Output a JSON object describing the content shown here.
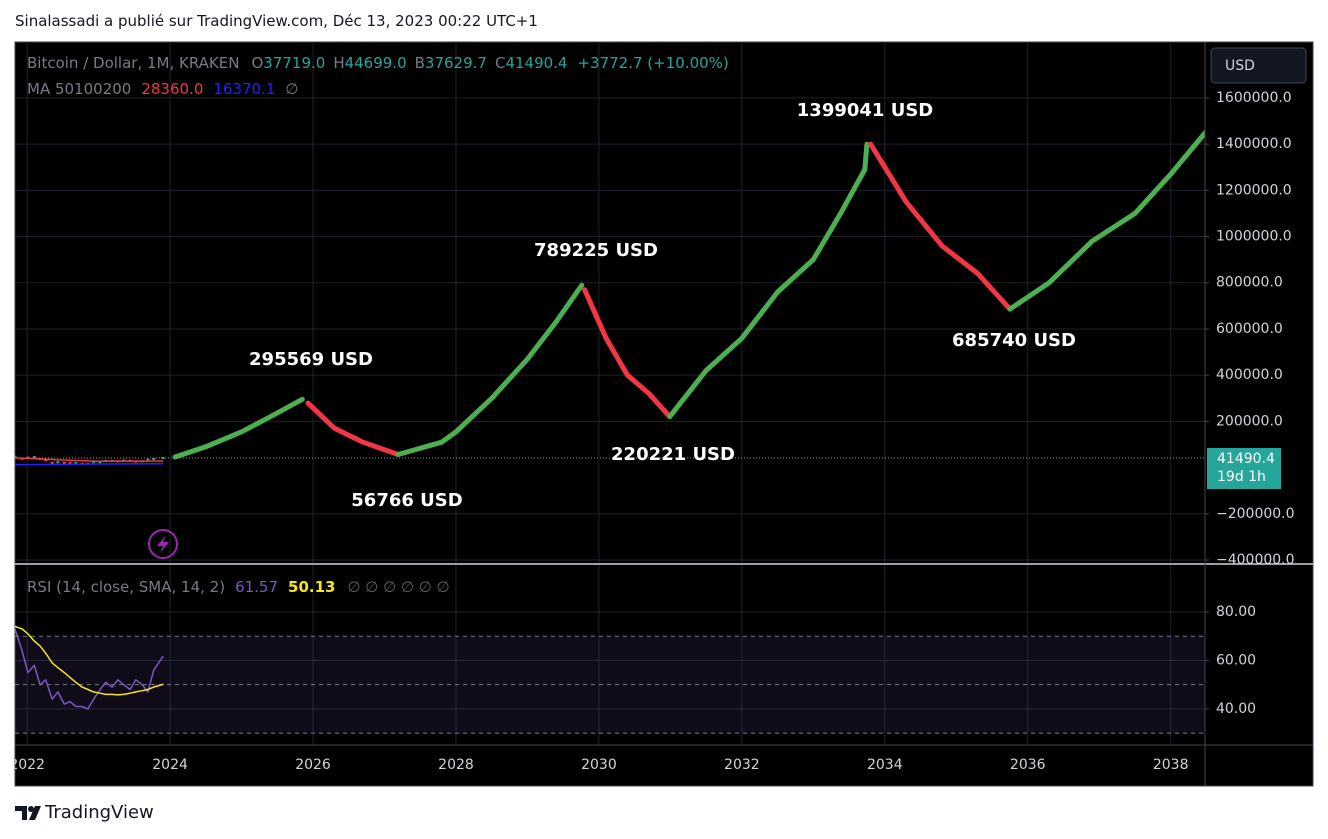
{
  "header": "Sinalassadi a publié sur TradingView.com, Déc 13, 2023 00:22 UTC+1",
  "footer": "TradingView",
  "chart_data": [
    {
      "type": "line",
      "title": "Bitcoin / Dollar, 1M, KRAKEN",
      "ohlc": [
        {
          "label": "O",
          "value": "37719.0"
        },
        {
          "label": "H",
          "value": "44699.0"
        },
        {
          "label": "B",
          "value": "37629.7"
        },
        {
          "label": "C",
          "value": "41490.4"
        }
      ],
      "change": "+3772.7 (+10.00%)",
      "indicator": {
        "name": "MA 50100200",
        "values": [
          {
            "text": "28360.0",
            "color": "#f23645"
          },
          {
            "text": "16370.1",
            "color": "#2121ff"
          }
        ],
        "empty": "∅"
      },
      "currency": "USD",
      "last_price": 41490.4,
      "countdown": "19d 1h",
      "xlim": [
        2021.83,
        2038.48
      ],
      "ylim": [
        -413000,
        1842000
      ],
      "yticks": [
        {
          "value": 1600000,
          "label": "1600000.0"
        },
        {
          "value": 1400000,
          "label": "1400000.0"
        },
        {
          "value": 1200000,
          "label": "1200000.0"
        },
        {
          "value": 1000000,
          "label": "1000000.0"
        },
        {
          "value": 800000,
          "label": "800000.0"
        },
        {
          "value": 600000,
          "label": "600000.0"
        },
        {
          "value": 400000,
          "label": "400000.0"
        },
        {
          "value": 200000,
          "label": "200000.0"
        },
        {
          "value": -200000,
          "label": "−200000.0"
        },
        {
          "value": -400000,
          "label": "−400000.0"
        }
      ],
      "grid": true,
      "candles": {
        "up_color": "#26a69a",
        "down_color": "#ef5350",
        "x": [
          2021.83,
          2021.93,
          2022.01,
          2022.1,
          2022.18,
          2022.26,
          2022.35,
          2022.43,
          2022.52,
          2022.6,
          2022.68,
          2022.77,
          2022.85,
          2022.93,
          2023.02,
          2023.1,
          2023.19,
          2023.27,
          2023.35,
          2023.44,
          2023.52,
          2023.61,
          2023.69,
          2023.77,
          2023.9
        ],
        "values": [
          47000,
          38500,
          43000,
          45500,
          37700,
          31800,
          19800,
          23300,
          20000,
          19400,
          20500,
          17200,
          16500,
          23100,
          23100,
          28500,
          29200,
          27200,
          30500,
          29200,
          26000,
          27000,
          34600,
          37700,
          41490.4
        ]
      },
      "series": [
        {
          "color": "#f23645",
          "width": 1.5,
          "x": [
            2021.83,
            2022.5,
            2023.0,
            2023.9
          ],
          "values": [
            42000,
            33000,
            27000,
            28360
          ]
        },
        {
          "color": "#2121ff",
          "width": 1.5,
          "x": [
            2021.83,
            2022.5,
            2023.0,
            2023.9
          ],
          "values": [
            12000,
            14000,
            15500,
            16370
          ]
        },
        {
          "color": "#4caf50",
          "width": 5,
          "x": [
            2024.07,
            2024.5,
            2025.0,
            2025.4,
            2025.85
          ],
          "values": [
            45900,
            90000,
            155000,
            220000,
            295569
          ]
        },
        {
          "color": "#f23645",
          "width": 5,
          "x": [
            2025.93,
            2026.3,
            2026.7,
            2027.19
          ],
          "values": [
            279000,
            170000,
            110000,
            56766
          ]
        },
        {
          "color": "#4caf50",
          "width": 5,
          "x": [
            2027.19,
            2027.8,
            2028.0,
            2028.5,
            2029.0,
            2029.4,
            2029.76
          ],
          "values": [
            56766,
            110000,
            155000,
            300000,
            470000,
            630000,
            789225
          ]
        },
        {
          "color": "#f23645",
          "width": 5,
          "x": [
            2029.8,
            2030.1,
            2030.4,
            2030.7,
            2030.99
          ],
          "values": [
            770000,
            560000,
            400000,
            320000,
            220221
          ]
        },
        {
          "color": "#4caf50",
          "width": 5,
          "x": [
            2030.99,
            2031.5,
            2032.0,
            2032.5,
            2033.0,
            2033.4,
            2033.72,
            2033.75
          ],
          "values": [
            220221,
            420000,
            560000,
            760000,
            900000,
            1110000,
            1290000,
            1399041
          ]
        },
        {
          "color": "#f23645",
          "width": 5,
          "x": [
            2033.8,
            2034.3,
            2034.8,
            2035.3,
            2035.75
          ],
          "values": [
            1400000,
            1150000,
            960000,
            840000,
            685740
          ]
        },
        {
          "color": "#4caf50",
          "width": 5,
          "x": [
            2035.75,
            2036.3,
            2036.9,
            2037.5,
            2038.0,
            2038.48
          ],
          "values": [
            685740,
            800000,
            980000,
            1100000,
            1270000,
            1448500
          ]
        }
      ],
      "annotations": [
        "295569 USD",
        "56766 USD",
        "789225 USD",
        "220221 USD",
        "1399041 USD",
        "685740 USD"
      ]
    },
    {
      "type": "line",
      "title": "RSI (14, close, SMA, 14, 2)",
      "legend_values": [
        {
          "text": "61.57",
          "color": "#7e57c2"
        },
        {
          "text": "50.13",
          "color": "#f7e61b"
        }
      ],
      "empty": "∅ ∅ ∅ ∅ ∅ ∅",
      "xlim": [
        2021.83,
        2038.48
      ],
      "ylim": [
        25.1,
        99.4
      ],
      "yticks": [
        {
          "value": 80,
          "label": "80.00"
        },
        {
          "value": 60,
          "label": "60.00"
        },
        {
          "value": 40,
          "label": "40.00"
        }
      ],
      "xticks": [
        2022,
        2024,
        2026,
        2028,
        2030,
        2032,
        2034,
        2036,
        2038
      ],
      "levels": [
        70,
        50,
        30
      ],
      "band_color": "rgba(126,87,194,0.12)",
      "grid": true,
      "series": [
        {
          "color": "#7e57c2",
          "width": 1.5,
          "x": [
            2021.83,
            2021.93,
            2022.01,
            2022.1,
            2022.18,
            2022.26,
            2022.35,
            2022.43,
            2022.52,
            2022.6,
            2022.68,
            2022.77,
            2022.85,
            2022.93,
            2023.02,
            2023.1,
            2023.19,
            2023.27,
            2023.35,
            2023.44,
            2023.52,
            2023.61,
            2023.69,
            2023.77,
            2023.9
          ],
          "values": [
            73,
            64,
            55,
            58,
            50,
            52,
            44,
            47,
            42,
            43,
            41,
            41,
            40,
            44,
            48,
            51,
            49,
            52,
            50,
            48,
            52,
            50,
            47,
            56,
            61.57
          ]
        },
        {
          "color": "#f7e61b",
          "width": 1.5,
          "x": [
            2021.83,
            2021.93,
            2022.01,
            2022.1,
            2022.18,
            2022.26,
            2022.35,
            2022.43,
            2022.52,
            2022.6,
            2022.68,
            2022.77,
            2022.85,
            2022.93,
            2023.02,
            2023.1,
            2023.19,
            2023.27,
            2023.35,
            2023.44,
            2023.52,
            2023.61,
            2023.69,
            2023.77,
            2023.9
          ],
          "values": [
            74,
            73,
            71,
            68,
            66,
            63,
            59,
            57,
            55,
            53,
            51,
            49,
            48,
            47,
            46.5,
            46,
            46,
            45.8,
            46,
            46.5,
            47,
            47.5,
            48,
            49,
            50.13
          ]
        }
      ]
    }
  ]
}
